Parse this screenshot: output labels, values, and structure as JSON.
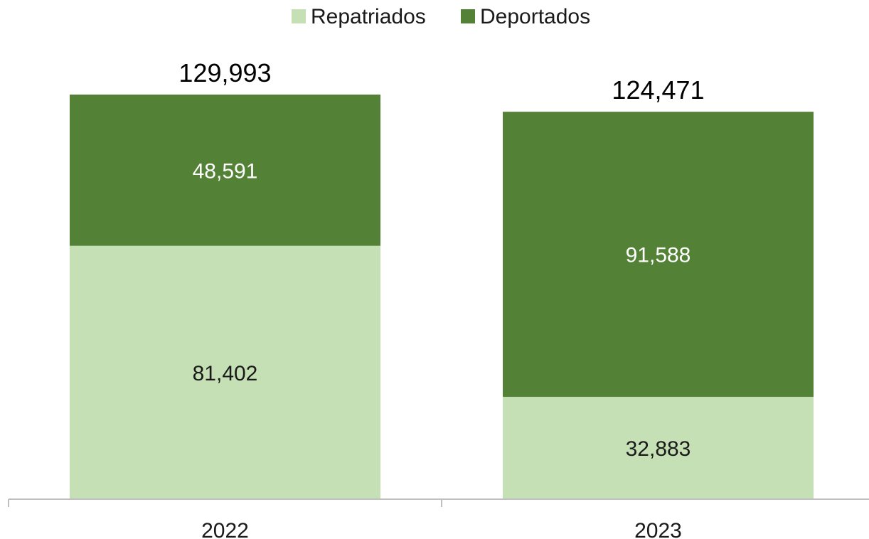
{
  "chart_data": {
    "type": "bar",
    "stacked": true,
    "categories": [
      "2022",
      "2023"
    ],
    "series": [
      {
        "name": "Repatriados",
        "values": [
          81402,
          32883
        ],
        "color": "#c5e0b4",
        "label_color": "#1a1a1a"
      },
      {
        "name": "Deportados",
        "values": [
          48591,
          91588
        ],
        "color": "#538135",
        "label_color": "#ffffff"
      }
    ],
    "data_labels": {
      "Repatriados": [
        "81,402",
        "32,883"
      ],
      "Deportados": [
        "48,591",
        "91,588"
      ]
    },
    "totals": [
      129993,
      124471
    ],
    "total_labels": [
      "129,993",
      "124,471"
    ],
    "title": "",
    "xlabel": "",
    "ylabel": "",
    "ylim": [
      0,
      150000
    ],
    "grid": false,
    "legend_position": "top-center",
    "axis_color": "#bfbfbf"
  }
}
